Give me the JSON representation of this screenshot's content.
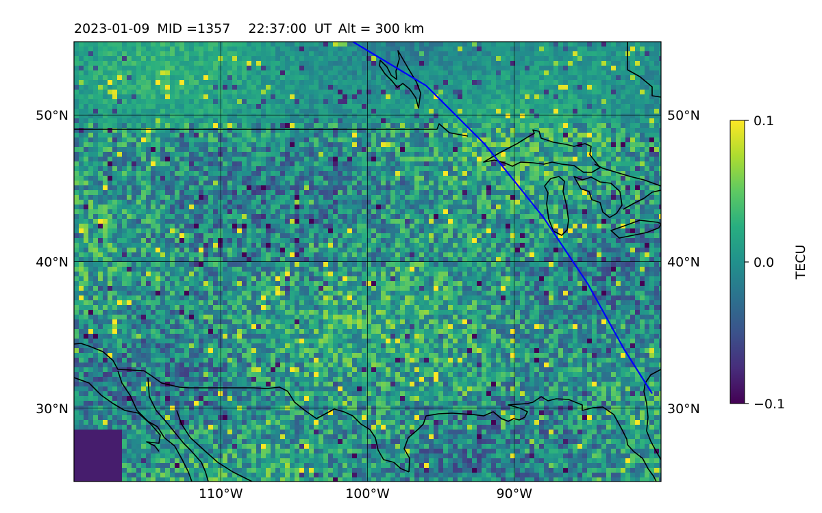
{
  "header": {
    "date": "2023-01-09",
    "mid": "MID =1357",
    "time": "22:37:00",
    "ut": "UT",
    "alt": "Alt = 300 km"
  },
  "map": {
    "lon_range": [
      -120,
      -80
    ],
    "lat_range": [
      25,
      55
    ],
    "lat_labels": [
      {
        "lat": 50,
        "text": "50°N"
      },
      {
        "lat": 40,
        "text": "40°N"
      },
      {
        "lat": 30,
        "text": "30°N"
      }
    ],
    "lon_labels": [
      {
        "lon": -110,
        "text": "110°W"
      },
      {
        "lon": -100,
        "text": "100°W"
      },
      {
        "lon": -90,
        "text": "90°W"
      }
    ],
    "grid": true,
    "colormap": "viridis",
    "track_color": "#0000ff",
    "coast_color": "#000000",
    "track": [
      [
        -101.0,
        55.0
      ],
      [
        -96.0,
        52.0
      ],
      [
        -92.0,
        48.0
      ],
      [
        -88.0,
        43.0
      ],
      [
        -85.0,
        38.5
      ],
      [
        -82.5,
        34.0
      ],
      [
        -80.6,
        31.0
      ]
    ]
  },
  "colorbar": {
    "label": "TECU",
    "ticks": [
      {
        "value": 0.1,
        "text": "0.1"
      },
      {
        "value": 0.0,
        "text": "0.0"
      },
      {
        "value": -0.1,
        "text": "−0.1"
      }
    ],
    "range": [
      -0.1,
      0.1
    ]
  }
}
